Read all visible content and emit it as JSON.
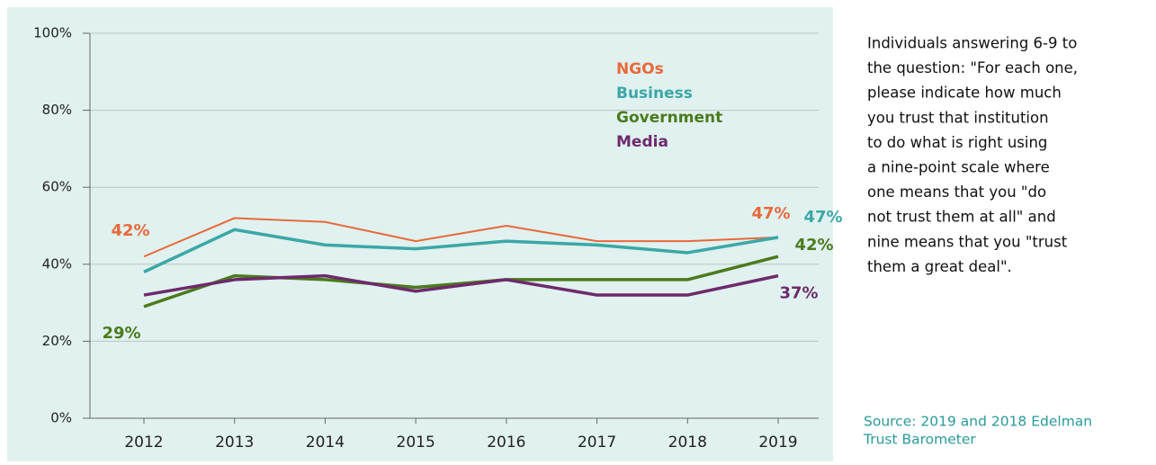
{
  "chart_data": {
    "type": "line",
    "categories": [
      "2012",
      "2013",
      "2014",
      "2015",
      "2016",
      "2017",
      "2018",
      "2019"
    ],
    "series": [
      {
        "name": "NGOs",
        "color": "#e8693a",
        "values": [
          42,
          52,
          51,
          46,
          50,
          46,
          46,
          47
        ],
        "value_labels": [
          "42%",
          null,
          null,
          null,
          null,
          null,
          null,
          "47%"
        ]
      },
      {
        "name": "Business",
        "color": "#3ba7a7",
        "values": [
          38,
          49,
          45,
          44,
          46,
          45,
          43,
          47
        ],
        "value_labels": [
          null,
          null,
          null,
          null,
          null,
          null,
          null,
          "47%"
        ]
      },
      {
        "name": "Government",
        "color": "#4b7a1c",
        "values": [
          29,
          37,
          36,
          34,
          36,
          36,
          36,
          42
        ],
        "value_labels": [
          "29%",
          null,
          null,
          null,
          null,
          null,
          null,
          "42%"
        ]
      },
      {
        "name": "Media",
        "color": "#6e2a6c",
        "values": [
          32,
          36,
          37,
          33,
          36,
          32,
          32,
          37
        ],
        "value_labels": [
          null,
          null,
          null,
          null,
          null,
          null,
          null,
          "37%"
        ]
      }
    ],
    "ylim": [
      0,
      100
    ],
    "yticks": [
      {
        "value": 0,
        "label": "0%"
      },
      {
        "value": 20,
        "label": "20%"
      },
      {
        "value": 40,
        "label": "40%"
      },
      {
        "value": 60,
        "label": "60%"
      },
      {
        "value": 80,
        "label": "80%"
      },
      {
        "value": 100,
        "label": "100%"
      }
    ],
    "grid": true,
    "note_lines": [
      "Individuals answering 6-9 to",
      "the question: \"For each one,",
      "please indicate how much",
      "you trust that institution",
      "to do what is right using",
      "a nine-point scale where",
      "one means that you \"do",
      "not trust them at all\" and",
      "nine means that you \"trust",
      "them a great deal\"."
    ],
    "source_lines": [
      "Source: 2019 and 2018 Edelman",
      "Trust Barometer"
    ]
  }
}
